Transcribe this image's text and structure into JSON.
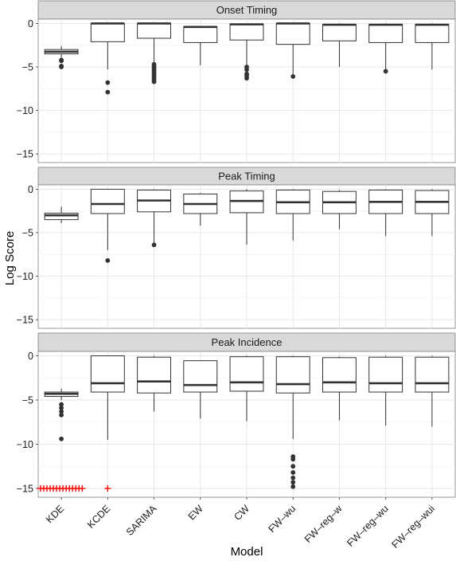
{
  "chart_data": {
    "type": "boxplot",
    "xlabel": "Model",
    "ylabel": "Log Score",
    "categories": [
      "KDE",
      "KCDE",
      "SARIMA",
      "EW",
      "CW",
      "FW–wu",
      "FW–reg–w",
      "FW–reg–wu",
      "FW–reg–wui"
    ],
    "ylim": [
      -16,
      0.5
    ],
    "yticks": [
      0,
      -5,
      -10,
      -15
    ],
    "ytick_labels": [
      "0",
      "−5",
      "−10",
      "−15"
    ],
    "grid": true,
    "panels": [
      {
        "title": "Onset Timing",
        "boxes": [
          {
            "q1": -3.5,
            "median": -3.25,
            "q3": -3.0,
            "whisker_low": -3.9,
            "whisker_high": -2.6,
            "outliers": [
              -4.2,
              -4.3,
              -4.9,
              -5.0
            ]
          },
          {
            "q1": -2.1,
            "median": 0.0,
            "q3": 0.0,
            "whisker_low": -5.3,
            "whisker_high": 0.0,
            "outliers": [
              -6.8,
              -7.9
            ]
          },
          {
            "q1": -1.7,
            "median": 0.0,
            "q3": 0.0,
            "whisker_low": -4.5,
            "whisker_high": 0.0,
            "outliers": [
              -4.7,
              -4.9,
              -5.1,
              -5.3,
              -5.5,
              -5.7,
              -5.9,
              -6.1,
              -6.3,
              -6.5,
              -6.7
            ]
          },
          {
            "q1": -2.2,
            "median": -0.4,
            "q3": -0.35,
            "whisker_low": -4.8,
            "whisker_high": -0.3,
            "outliers": []
          },
          {
            "q1": -1.9,
            "median": -0.1,
            "q3": -0.05,
            "whisker_low": -4.8,
            "whisker_high": 0.0,
            "outliers": [
              -5.0,
              -5.3,
              -5.8,
              -6.0,
              -6.3
            ]
          },
          {
            "q1": -2.4,
            "median": 0.0,
            "q3": 0.0,
            "whisker_low": -5.9,
            "whisker_high": 0.0,
            "outliers": [
              -6.1
            ]
          },
          {
            "q1": -2.0,
            "median": -0.15,
            "q3": -0.1,
            "whisker_low": -5.0,
            "whisker_high": 0.0,
            "outliers": []
          },
          {
            "q1": -2.2,
            "median": -0.15,
            "q3": -0.1,
            "whisker_low": -5.3,
            "whisker_high": 0.0,
            "outliers": [
              -5.5
            ]
          },
          {
            "q1": -2.2,
            "median": -0.15,
            "q3": -0.1,
            "whisker_low": -5.3,
            "whisker_high": 0.0,
            "outliers": []
          }
        ]
      },
      {
        "title": "Peak Timing",
        "boxes": [
          {
            "q1": -3.5,
            "median": -3.0,
            "q3": -2.75,
            "whisker_low": -3.9,
            "whisker_high": -2.0,
            "outliers": []
          },
          {
            "q1": -2.8,
            "median": -1.7,
            "q3": 0.0,
            "whisker_low": -7.0,
            "whisker_high": 0.0,
            "outliers": [
              -8.2
            ]
          },
          {
            "q1": -2.6,
            "median": -1.3,
            "q3": -0.1,
            "whisker_low": -6.2,
            "whisker_high": 0.0,
            "outliers": [
              -6.4
            ]
          },
          {
            "q1": -2.8,
            "median": -1.7,
            "q3": -0.55,
            "whisker_low": -4.2,
            "whisker_high": -0.45,
            "outliers": []
          },
          {
            "q1": -2.7,
            "median": -1.35,
            "q3": -0.2,
            "whisker_low": -6.4,
            "whisker_high": 0.0,
            "outliers": []
          },
          {
            "q1": -2.8,
            "median": -1.5,
            "q3": -0.1,
            "whisker_low": -5.9,
            "whisker_high": 0.0,
            "outliers": []
          },
          {
            "q1": -2.8,
            "median": -1.5,
            "q3": -0.25,
            "whisker_low": -4.6,
            "whisker_high": -0.1,
            "outliers": []
          },
          {
            "q1": -2.8,
            "median": -1.45,
            "q3": -0.1,
            "whisker_low": -5.4,
            "whisker_high": 0.0,
            "outliers": []
          },
          {
            "q1": -2.8,
            "median": -1.45,
            "q3": -0.15,
            "whisker_low": -5.4,
            "whisker_high": 0.0,
            "outliers": []
          }
        ]
      },
      {
        "title": "Peak Incidence",
        "boxes": [
          {
            "q1": -4.6,
            "median": -4.3,
            "q3": -4.1,
            "whisker_low": -5.0,
            "whisker_high": -3.7,
            "outliers": [
              -5.5,
              -5.9,
              -6.3,
              -6.7,
              -9.4
            ],
            "neg_inf_markers": 14
          },
          {
            "q1": -4.1,
            "median": -3.1,
            "q3": 0.0,
            "whisker_low": -9.5,
            "whisker_high": 0.0,
            "outliers": [],
            "neg_inf_markers": 1
          },
          {
            "q1": -4.2,
            "median": -2.9,
            "q3": -0.15,
            "whisker_low": -6.3,
            "whisker_high": 0.0,
            "outliers": []
          },
          {
            "q1": -4.1,
            "median": -3.3,
            "q3": -0.55,
            "whisker_low": -7.1,
            "whisker_high": -0.5,
            "outliers": []
          },
          {
            "q1": -4.0,
            "median": -3.0,
            "q3": -0.1,
            "whisker_low": -7.4,
            "whisker_high": 0.0,
            "outliers": []
          },
          {
            "q1": -4.2,
            "median": -3.2,
            "q3": -0.1,
            "whisker_low": -9.4,
            "whisker_high": 0.0,
            "outliers": [
              -11.4,
              -11.7,
              -12.5,
              -13.2,
              -13.8,
              -14.3,
              -14.8
            ]
          },
          {
            "q1": -4.1,
            "median": -3.0,
            "q3": -0.2,
            "whisker_low": -7.3,
            "whisker_high": -0.1,
            "outliers": []
          },
          {
            "q1": -4.1,
            "median": -3.1,
            "q3": -0.15,
            "whisker_low": -7.9,
            "whisker_high": 0.0,
            "outliers": []
          },
          {
            "q1": -4.1,
            "median": -3.1,
            "q3": -0.15,
            "whisker_low": -8.0,
            "whisker_high": 0.0,
            "outliers": []
          }
        ]
      }
    ]
  }
}
